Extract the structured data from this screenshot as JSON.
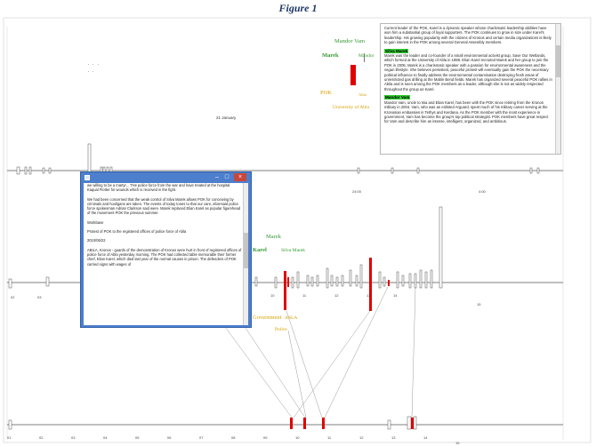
{
  "figure_title": "Figure 1",
  "top_graph": {
    "left_labels": {
      "mandor_vam": "Mandor Vam",
      "marek": "Marek",
      "mandor": "Mandor"
    },
    "bottom_labels": {
      "pok": "POK",
      "abla": "Abla",
      "university": "University of Abla"
    }
  },
  "middle_graph": {
    "labels": {
      "marek": "Marek",
      "karel": "Karel",
      "silva_marek": "Silva Marek",
      "government": "Government",
      "asla": "ASLA",
      "police": "Police"
    }
  },
  "top_timeline": {
    "date_label": "21 January",
    "times": [
      "24:00",
      "4:00"
    ]
  },
  "middle_timeline": {
    "left_ticks": [
      "02",
      "03"
    ],
    "right_ticks": [
      "10",
      "11",
      "12",
      "13",
      "14",
      "15"
    ]
  },
  "bottom_timeline": {
    "ticks": [
      "01",
      "02",
      "03",
      "04",
      "05",
      "06",
      "07",
      "08",
      "09",
      "10",
      "11",
      "12",
      "13",
      "14",
      "15"
    ]
  },
  "info_panel": {
    "p1": "Current leader of the POK, Karel is a dynamic speaker whose charismatic leadership abilities have won him a substantial group of loyal supporters. The POK continues to grow in size under Karel's leadership. His growing popularity with the citizens of Kronos and certain media organizations is likely to gain interest in the POK among several General Assembly members.",
    "name2": "Silva Marek",
    "p2": "Marek was the leader and co-founder of a small environmental activist group, Save Our Wetlands, which formed at the University of Abla in 1998. Elian Karel recruited Marek and her group to join the POK in 2005. Marek is a charismatic speaker with a passion for environmental awareness and the vegan lifestyle. She believes persistent, peaceful protest will eventually gain the POK the necessary political influence to finally address the environmental contamination destroying fresh areas of unrestricted gas drilling at the Mable Bend fields. Marek has organized several peaceful POK rallies in Abila and is seen among the POK members as a leader, although she is not as widely respected throughout the group as Karel.",
    "name3": "Mandor Vam",
    "p3": "Mandor Vam, uncle to Isia and Elian Karel, has been with the POK since retiring from the Kronos military in 2004. Vam, who was an enlisted Arguard, spent much of his military career serving at the Kronosian embassies in Tethys and Kerdana. As the POK member with the most experience in government, Vam has become the group's top political strategist. POK members have great respect for Vam and describe him as intense, intelligent, organized, and ambitious."
  },
  "popup_window": {
    "p1": "we willing to be a martyr... THe police force from the war and have treated at the hospital Kaqual Flotter for wounds which is received in the fight.",
    "p2": "We had been concerned that the weak control of Silva Marek allows POK for conceiving by criminals and hooligans are taken.  The events of today tones to that our care, aforesaid police force spokesman Adrian Clarkson said were.  Marek replaced Elian Karel as popular figurehead of the movement POK the previous summer.",
    "p3": "Workbase",
    "p4": "Protest of POK to the registered offices of police force of Abla",
    "p5": "2010/06/22",
    "p6": "ABILA, Kronos - guards of the demonstration of Kronos were hurt in front of registered offices of police force of Abla yesterday morning. The POK had collected table memorable their former chief, Elian Karel, which died last year of the normal causes in prison.  The defenders of POK carried signs with wages of"
  }
}
